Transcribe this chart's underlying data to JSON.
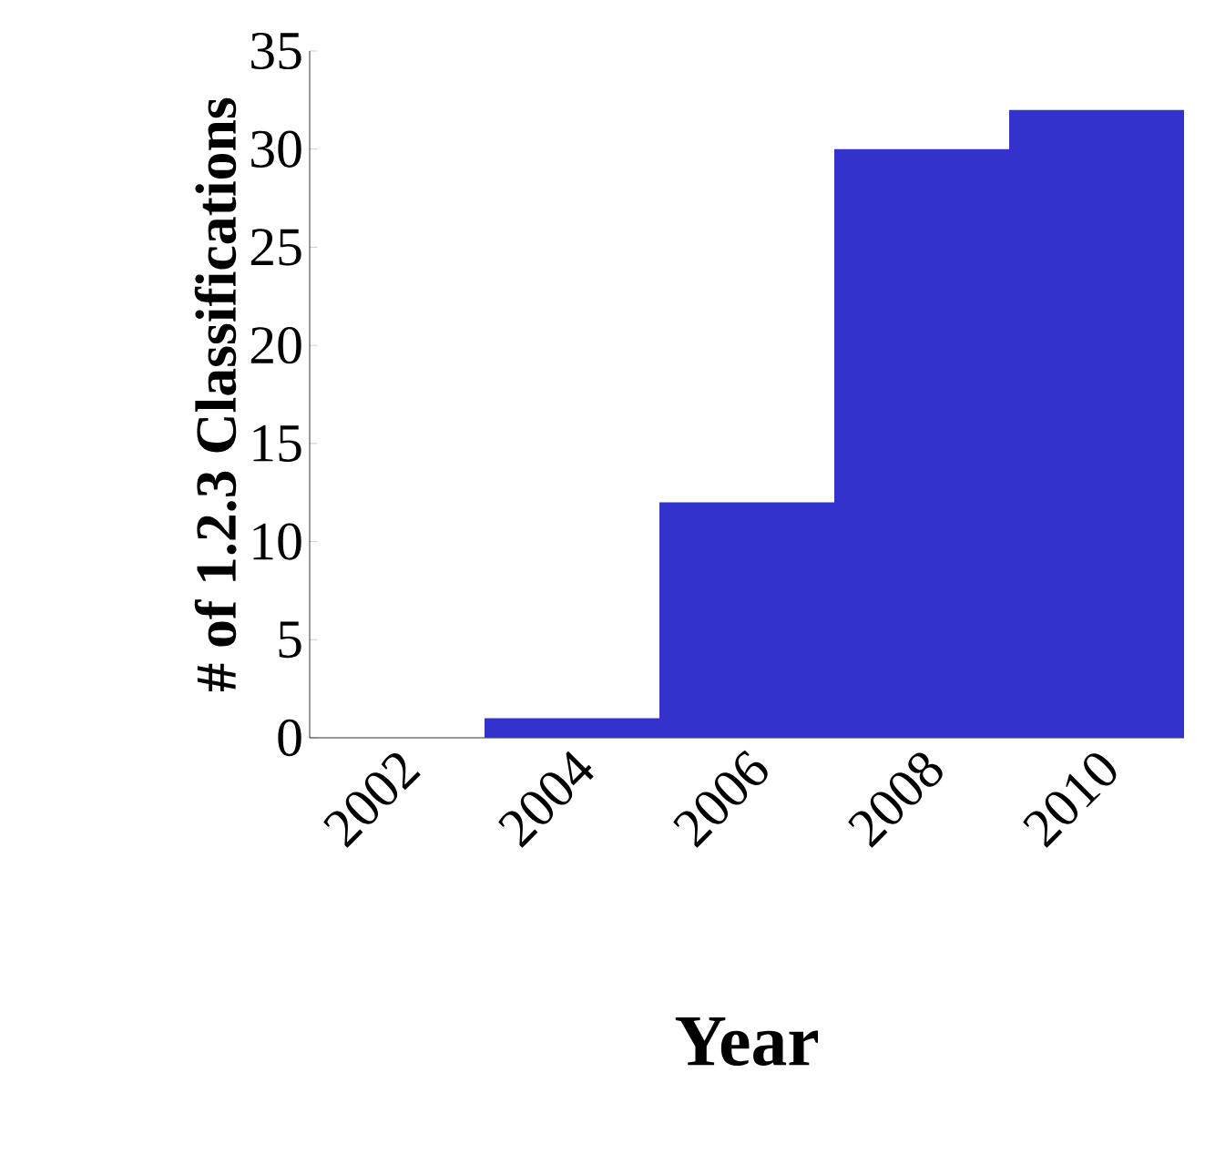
{
  "chart_data": {
    "type": "bar",
    "xlabel": "Year",
    "ylabel": "# of 1.2.3 Classifications",
    "categories": [
      "2002",
      "2004",
      "2006",
      "2008",
      "2010"
    ],
    "values": [
      0,
      1,
      12,
      30,
      32
    ],
    "color": "#3333cc",
    "ylim": [
      0,
      35
    ],
    "yticks": [
      0,
      5,
      10,
      15,
      20,
      25,
      30,
      35
    ]
  }
}
